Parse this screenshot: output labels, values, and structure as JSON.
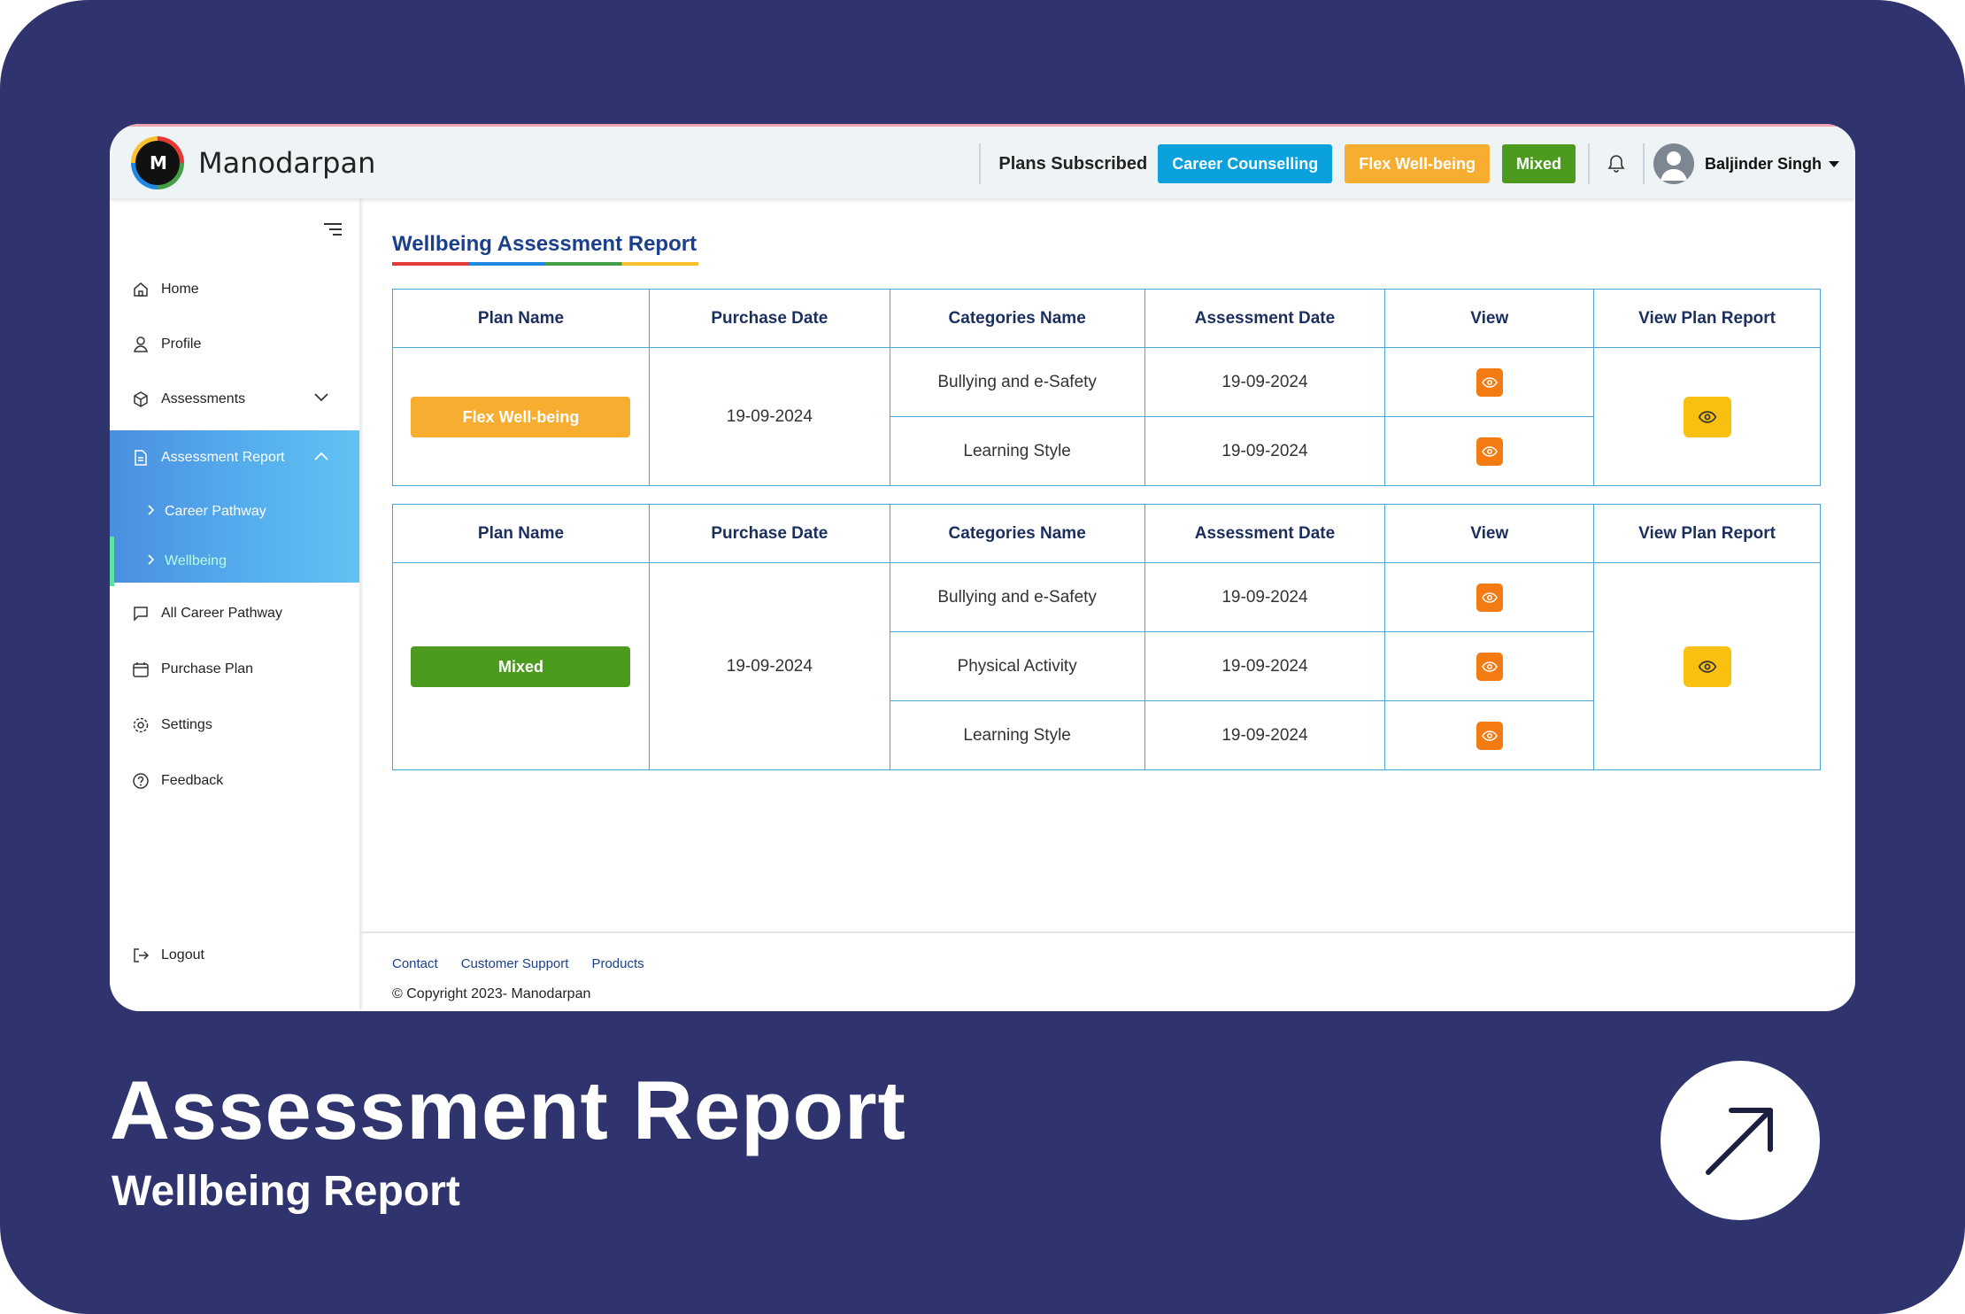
{
  "app": {
    "brand": "Manodarpan",
    "logo_text": "M"
  },
  "topbar": {
    "plans_label": "Plans Subscribed",
    "plans": [
      {
        "label": "Career Counselling",
        "color": "#0aa1dd"
      },
      {
        "label": "Flex Well-being",
        "color": "#f7ae30"
      },
      {
        "label": "Mixed",
        "color": "#4c9b1f"
      }
    ],
    "user_name": "Baljinder Singh"
  },
  "sidebar": {
    "items": [
      {
        "label": "Home",
        "icon": "home-icon"
      },
      {
        "label": "Profile",
        "icon": "user-icon"
      },
      {
        "label": "Assessments",
        "icon": "box-icon"
      },
      {
        "label": "Assessment Report",
        "icon": "document-icon"
      },
      {
        "label": "Career Pathway"
      },
      {
        "label": "Wellbeing"
      },
      {
        "label": "All Career Pathway",
        "icon": "chat-icon"
      },
      {
        "label": "Purchase Plan",
        "icon": "calendar-icon"
      },
      {
        "label": "Settings",
        "icon": "gear-icon"
      },
      {
        "label": "Feedback",
        "icon": "help-icon"
      },
      {
        "label": "Logout",
        "icon": "logout-icon"
      }
    ]
  },
  "main": {
    "title": "Wellbeing Assessment Report",
    "columns": [
      "Plan Name",
      "Purchase Date",
      "Categories Name",
      "Assessment Date",
      "View",
      "View Plan Report"
    ],
    "reports": [
      {
        "plan_name": "Flex Well-being",
        "plan_color": "#f7ae30",
        "purchase_date": "19-09-2024",
        "rows": [
          {
            "category": "Bullying and e-Safety",
            "assessment_date": "19-09-2024"
          },
          {
            "category": "Learning Style",
            "assessment_date": "19-09-2024"
          }
        ]
      },
      {
        "plan_name": "Mixed",
        "plan_color": "#4c9b1f",
        "purchase_date": "19-09-2024",
        "rows": [
          {
            "category": "Bullying and e-Safety",
            "assessment_date": "19-09-2024"
          },
          {
            "category": "Physical Activity",
            "assessment_date": "19-09-2024"
          },
          {
            "category": "Learning Style",
            "assessment_date": "19-09-2024"
          }
        ]
      }
    ]
  },
  "footer": {
    "links": [
      "Contact",
      "Customer Support",
      "Products"
    ],
    "copyright": "© Copyright 2023- Manodarpan"
  },
  "caption": {
    "title": "Assessment Report",
    "subtitle": "Wellbeing Report"
  }
}
